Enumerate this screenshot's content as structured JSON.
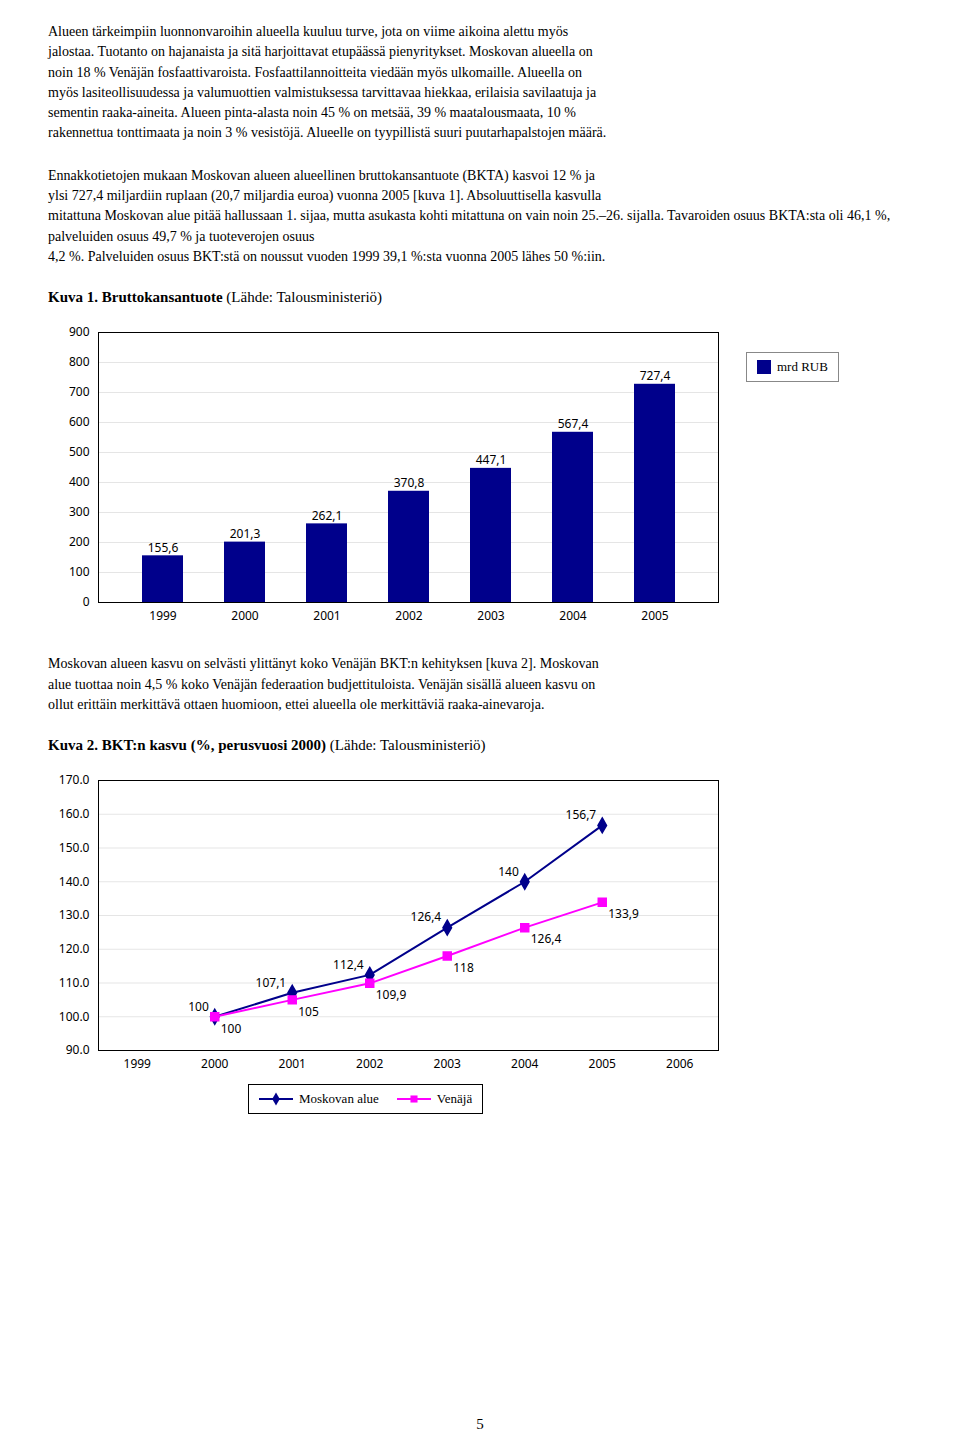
{
  "texts": [
    "Alueen tärkeimpiin luonnonvaroihin alueella kuuluu turve, jota on viime aikoina alettu myös\njalostaa. Tuotanto on hajanaista ja sitä harjoittavat etupäässä pienyritykset. Moskovan alueella on\nnoin 18 % Venäjän fosfaattivaroista. Fosfaattilannoitteita viedään myös ulkomaille. Alueella on\nmyös lasiteollisuudessa ja valumuottien valmistuksessa tarvittavaa hiekkaa, erilaisia savilaatuja ja\nsementin raaka-aineita. Alueen pinta-alasta noin 45 % on metsää, 39 % maatalousmaata, 10 %\nrakennettua tonttimaata ja noin 3 % vesistöjä. Alueelle on tyypillistä suuri puutarhapalstojen määrä.",
    "Ennakkotietojen mukaan Moskovan alueen alueellinen bruttokansantuote (BKTA) kasvoi 12 % ja\nylsi 727,4 miljardiin ruplaan (20,7 miljardia euroa) vuonna 2005 [kuva 1]. Absoluuttisella kasvulla\nmitattuna Moskovan alue pitää hallussaan 1. sijaa, mutta asukasta kohti mitattuna on vain noin 25.–26. sijalla. Tavaroiden osuus BKTA:sta oli 46,1 %, palveluiden osuus 49,7 % ja tuoteverojen osuus\n4,2 %. Palveluiden osuus BKT:stä on noussut vuoden 1999 39,1 %:sta vuonna 2005 lähes 50 %:iin.",
    "Moskovan alueen kasvu on selvästi ylittänyt koko Venäjän BKT:n kehityksen [kuva 2]. Moskovan\nalue tuottaa noin 4,5 % koko Venäjän federaation budjettituloista. Venäjän sisällä alueen kasvu on\nollut erittäin merkittävä ottaen huomioon, ettei alueella ole merkittäviä raaka-ainevaroja."
  ],
  "page_number": "5",
  "chart_data": [
    {
      "type": "bar",
      "title": "Kuva 1. Bruttokansantuote",
      "subtitle": "(Lähde: Talousministeriö)",
      "categories": [
        "1999",
        "2000",
        "2001",
        "2002",
        "2003",
        "2004",
        "2005"
      ],
      "series": [
        {
          "name": "mrd RUB",
          "color": "#00008B",
          "values": [
            155.6,
            201.3,
            262.1,
            370.8,
            447.1,
            567.4,
            727.4
          ],
          "value_labels": [
            "155,6",
            "201,3",
            "262,1",
            "370,8",
            "447,1",
            "567,4",
            "727,4"
          ]
        }
      ],
      "ylim": [
        0,
        900
      ],
      "yticks": [
        0,
        100,
        200,
        300,
        400,
        500,
        600,
        700,
        800,
        900
      ],
      "grid": true,
      "legend": "right",
      "data_labels": true
    },
    {
      "type": "line",
      "title": "Kuva 2. BKT:n kasvu (%, perusvuosi 2000)",
      "subtitle": "(Lähde: Talousministeriö)",
      "x": [
        1999,
        2000,
        2001,
        2002,
        2003,
        2004,
        2005,
        2006
      ],
      "xlim": [
        1998.5,
        2006.5
      ],
      "xticks": [
        1999,
        2000,
        2001,
        2002,
        2003,
        2004,
        2005,
        2006
      ],
      "ylim": [
        90.0,
        170.0
      ],
      "yticks": [
        {
          "value": 90.0,
          "label": "90.0"
        },
        {
          "value": 100.0,
          "label": "100.0"
        },
        {
          "value": 110.0,
          "label": "110.0"
        },
        {
          "value": 120.0,
          "label": "120.0"
        },
        {
          "value": 130.0,
          "label": "130.0"
        },
        {
          "value": 140.0,
          "label": "140.0"
        },
        {
          "value": 150.0,
          "label": "150.0"
        },
        {
          "value": 160.0,
          "label": "160.0"
        },
        {
          "value": 170.0,
          "label": "170.0"
        }
      ],
      "grid": true,
      "legend": "bottom",
      "data_labels": true,
      "series": [
        {
          "name": "Moskovan alue",
          "color": "#00008B",
          "marker": "diamond",
          "values": [
            null,
            100.0,
            107.1,
            112.4,
            126.4,
            140.0,
            156.7,
            null
          ],
          "value_labels": [
            null,
            "100",
            "107,1",
            "112,4",
            "126,4",
            "140",
            "156,7",
            null
          ]
        },
        {
          "name": "Venäjä",
          "color": "#FF00FF",
          "marker": "square",
          "values": [
            null,
            100.0,
            105.0,
            109.9,
            118.0,
            126.4,
            133.9,
            null
          ],
          "value_labels": [
            null,
            "100",
            "105",
            "109,9",
            "118",
            "126,4",
            "133,9",
            null
          ]
        }
      ]
    }
  ]
}
